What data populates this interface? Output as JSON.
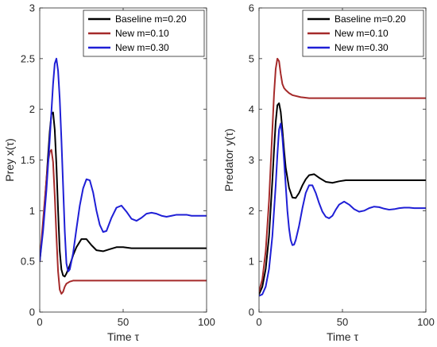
{
  "chart_data": [
    {
      "type": "line",
      "xlabel": "Time τ",
      "ylabel": "Prey x(τ)",
      "xlim": [
        0,
        100
      ],
      "ylim": [
        0,
        3
      ],
      "xticks": [
        0,
        50,
        100
      ],
      "yticks": [
        0,
        0.5,
        1,
        1.5,
        2,
        2.5,
        3
      ],
      "ytick_labels": [
        "0",
        "0.5",
        "1",
        "1.5",
        "2",
        "2.5",
        "3"
      ],
      "grid": false,
      "legend": "top-right",
      "series": [
        {
          "name": "Baseline m=0.20",
          "color": "#000000",
          "x": [
            0,
            2,
            4,
            6,
            7,
            8,
            9,
            10,
            11,
            12,
            13,
            14,
            15,
            16,
            18,
            20,
            22,
            25,
            28,
            31,
            34,
            38,
            42,
            46,
            50,
            55,
            60,
            70,
            80,
            90,
            100
          ],
          "y": [
            0.5,
            0.85,
            1.3,
            1.78,
            1.95,
            1.97,
            1.8,
            1.45,
            1.0,
            0.6,
            0.42,
            0.36,
            0.35,
            0.38,
            0.46,
            0.56,
            0.64,
            0.72,
            0.72,
            0.66,
            0.61,
            0.6,
            0.62,
            0.64,
            0.64,
            0.63,
            0.63,
            0.63,
            0.63,
            0.63,
            0.63
          ]
        },
        {
          "name": "New m=0.10",
          "color": "#a52a2a",
          "x": [
            0,
            2,
            4,
            5,
            6,
            7,
            8,
            9,
            10,
            11,
            12,
            13,
            14,
            15,
            16,
            18,
            20,
            25,
            30,
            40,
            50,
            60,
            70,
            80,
            90,
            100
          ],
          "y": [
            0.5,
            0.9,
            1.3,
            1.48,
            1.58,
            1.6,
            1.48,
            1.15,
            0.75,
            0.4,
            0.22,
            0.18,
            0.2,
            0.25,
            0.28,
            0.3,
            0.31,
            0.31,
            0.31,
            0.31,
            0.31,
            0.31,
            0.31,
            0.31,
            0.31,
            0.31
          ]
        },
        {
          "name": "New m=0.30",
          "color": "#1f1fd6",
          "x": [
            0,
            2,
            4,
            6,
            8,
            9,
            10,
            11,
            12,
            13,
            14,
            15,
            16,
            17,
            18,
            20,
            22,
            24,
            26,
            28,
            30,
            32,
            34,
            36,
            38,
            40,
            43,
            46,
            49,
            52,
            55,
            58,
            61,
            64,
            67,
            70,
            73,
            76,
            79,
            82,
            85,
            88,
            91,
            94,
            97,
            100
          ],
          "y": [
            0.5,
            0.8,
            1.2,
            1.7,
            2.25,
            2.45,
            2.5,
            2.38,
            2.1,
            1.7,
            1.25,
            0.8,
            0.48,
            0.4,
            0.42,
            0.58,
            0.82,
            1.05,
            1.22,
            1.31,
            1.3,
            1.18,
            1.0,
            0.86,
            0.79,
            0.8,
            0.93,
            1.03,
            1.05,
            0.99,
            0.92,
            0.9,
            0.93,
            0.97,
            0.98,
            0.97,
            0.95,
            0.94,
            0.95,
            0.96,
            0.96,
            0.96,
            0.95,
            0.95,
            0.95,
            0.95
          ]
        }
      ]
    },
    {
      "type": "line",
      "xlabel": "Time τ",
      "ylabel": "Predator y(τ)",
      "xlim": [
        0,
        100
      ],
      "ylim": [
        0,
        6
      ],
      "xticks": [
        0,
        50,
        100
      ],
      "yticks": [
        0,
        1,
        2,
        3,
        4,
        5,
        6
      ],
      "ytick_labels": [
        "0",
        "1",
        "2",
        "3",
        "4",
        "5",
        "6"
      ],
      "grid": false,
      "legend": "top-right",
      "series": [
        {
          "name": "Baseline m=0.20",
          "color": "#000000",
          "x": [
            0,
            2,
            4,
            6,
            8,
            9,
            10,
            11,
            12,
            13,
            14,
            15,
            16,
            18,
            20,
            22,
            24,
            26,
            28,
            30,
            33,
            36,
            40,
            44,
            48,
            52,
            56,
            60,
            70,
            80,
            90,
            100
          ],
          "y": [
            0.35,
            0.5,
            0.85,
            1.5,
            2.6,
            3.2,
            3.75,
            4.08,
            4.12,
            3.95,
            3.6,
            3.2,
            2.85,
            2.45,
            2.26,
            2.25,
            2.35,
            2.5,
            2.62,
            2.7,
            2.72,
            2.65,
            2.57,
            2.55,
            2.58,
            2.6,
            2.6,
            2.6,
            2.6,
            2.6,
            2.6,
            2.6
          ]
        },
        {
          "name": "New m=0.10",
          "color": "#a52a2a",
          "x": [
            0,
            2,
            4,
            6,
            7,
            8,
            9,
            10,
            11,
            12,
            13,
            14,
            15,
            16,
            18,
            20,
            25,
            30,
            40,
            50,
            60,
            70,
            80,
            90,
            100
          ],
          "y": [
            0.4,
            0.65,
            1.2,
            2.2,
            2.9,
            3.6,
            4.3,
            4.8,
            5.0,
            4.95,
            4.7,
            4.5,
            4.42,
            4.38,
            4.32,
            4.28,
            4.24,
            4.22,
            4.22,
            4.22,
            4.22,
            4.22,
            4.22,
            4.22,
            4.22
          ]
        },
        {
          "name": "New m=0.30",
          "color": "#1f1fd6",
          "x": [
            0,
            2,
            4,
            6,
            8,
            10,
            11,
            12,
            13,
            14,
            15,
            16,
            17,
            18,
            19,
            20,
            21,
            22,
            24,
            26,
            28,
            30,
            32,
            34,
            36,
            38,
            40,
            42,
            44,
            46,
            48,
            51,
            54,
            57,
            60,
            63,
            66,
            69,
            72,
            75,
            78,
            81,
            84,
            87,
            90,
            93,
            96,
            100
          ],
          "y": [
            0.32,
            0.35,
            0.5,
            0.85,
            1.5,
            2.5,
            3.1,
            3.6,
            3.72,
            3.45,
            3.0,
            2.5,
            2.0,
            1.65,
            1.42,
            1.32,
            1.33,
            1.42,
            1.7,
            2.05,
            2.35,
            2.5,
            2.5,
            2.35,
            2.15,
            1.98,
            1.88,
            1.85,
            1.9,
            2.02,
            2.12,
            2.18,
            2.12,
            2.03,
            1.98,
            2.0,
            2.05,
            2.08,
            2.07,
            2.04,
            2.02,
            2.03,
            2.05,
            2.06,
            2.06,
            2.05,
            2.05,
            2.05
          ]
        }
      ]
    }
  ]
}
